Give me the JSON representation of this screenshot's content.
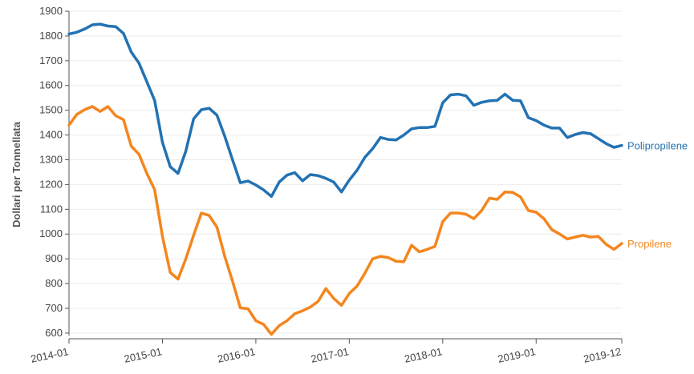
{
  "chart_data": {
    "type": "line",
    "ylabel": "Dollari per Tonnellata",
    "ylim": [
      590,
      1900
    ],
    "yticks": [
      600,
      700,
      800,
      900,
      1000,
      1100,
      1200,
      1300,
      1400,
      1500,
      1600,
      1700,
      1800,
      1900
    ],
    "x_start": "2014-01",
    "x_end": "2019-12",
    "xticks": [
      "2014-01",
      "2015-01",
      "2016-01",
      "2017-01",
      "2018-01",
      "2019-01",
      "2019-12"
    ],
    "series": [
      {
        "name": "Polipropilene",
        "color": "#2372b3",
        "values": [
          1808,
          1815,
          1828,
          1845,
          1848,
          1840,
          1838,
          1810,
          1735,
          1690,
          1615,
          1540,
          1370,
          1272,
          1245,
          1335,
          1465,
          1502,
          1508,
          1480,
          1395,
          1300,
          1207,
          1214,
          1198,
          1178,
          1152,
          1210,
          1238,
          1248,
          1215,
          1240,
          1236,
          1225,
          1210,
          1170,
          1218,
          1258,
          1310,
          1345,
          1390,
          1382,
          1380,
          1400,
          1425,
          1430,
          1430,
          1435,
          1530,
          1562,
          1565,
          1558,
          1520,
          1532,
          1538,
          1540,
          1565,
          1540,
          1538,
          1470,
          1458,
          1440,
          1428,
          1428,
          1390,
          1402,
          1410,
          1405,
          1385,
          1365,
          1350,
          1358
        ]
      },
      {
        "name": "Propilene",
        "color": "#f4861f",
        "values": [
          1440,
          1483,
          1502,
          1515,
          1495,
          1515,
          1478,
          1462,
          1355,
          1322,
          1245,
          1180,
          990,
          845,
          818,
          900,
          995,
          1085,
          1075,
          1028,
          910,
          810,
          702,
          698,
          650,
          635,
          595,
          630,
          650,
          678,
          690,
          705,
          728,
          780,
          740,
          712,
          760,
          790,
          842,
          900,
          910,
          905,
          890,
          888,
          955,
          928,
          938,
          950,
          1050,
          1085,
          1085,
          1080,
          1062,
          1095,
          1145,
          1140,
          1170,
          1168,
          1150,
          1095,
          1088,
          1062,
          1018,
          1000,
          980,
          988,
          995,
          988,
          990,
          958,
          938,
          962
        ]
      }
    ]
  }
}
